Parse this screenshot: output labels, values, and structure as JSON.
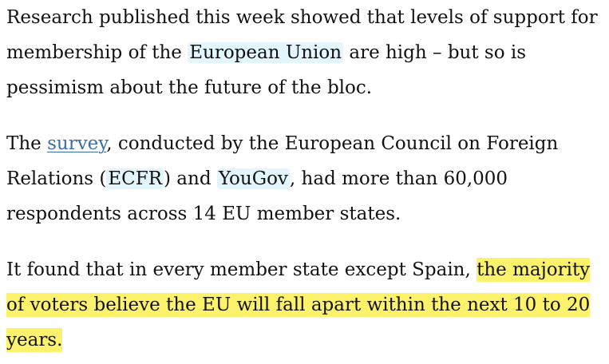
{
  "article": {
    "paragraphs": [
      {
        "before": "Research published this week showed that levels of support for membership of the ",
        "entity": "European Union",
        "after": " are high – but so is pessimism about the future of the bloc."
      },
      {
        "before": "The ",
        "link": "survey",
        "mid1": ", conducted by the European Council on Foreign Relations (",
        "entity1": "ECFR",
        "mid2": ") and ",
        "entity2": "YouGov",
        "after": ", had more than 60,000 respondents across 14 EU member states."
      },
      {
        "before": "It found that in every member state except Spain, ",
        "highlight": "the majority of voters believe the EU will fall apart within the next 10 to 20 years",
        "after": "."
      }
    ]
  },
  "colors": {
    "text": "#121212",
    "entity_bg": "#e3f5fd",
    "link": "#3a6ea8",
    "highlight": "#fcf26b"
  }
}
